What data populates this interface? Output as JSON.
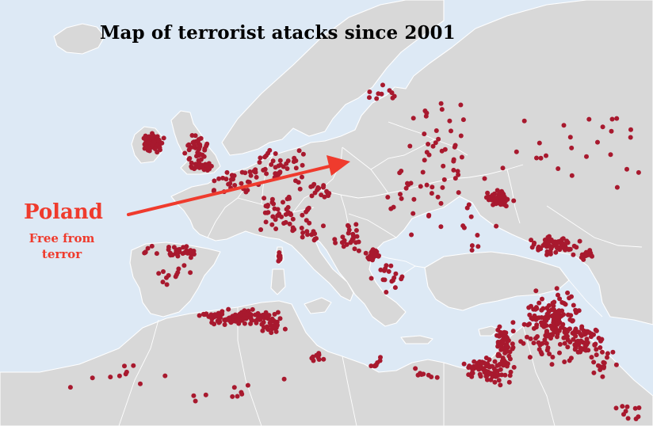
{
  "title": "Map of terrorist atacks since 2001",
  "annotation": {
    "country": "Poland",
    "caption_line1": "Free from",
    "caption_line2": "terror",
    "color": "#ef3b2d"
  },
  "colors": {
    "sea": "#dde9f5",
    "land": "#d8d8d8",
    "borders": "#ffffff",
    "attack_marker": "#a8192e",
    "arrow": "#ef3b2d"
  },
  "markers": {
    "icon": "red-dot-marker",
    "meaning": "terrorist attack"
  }
}
